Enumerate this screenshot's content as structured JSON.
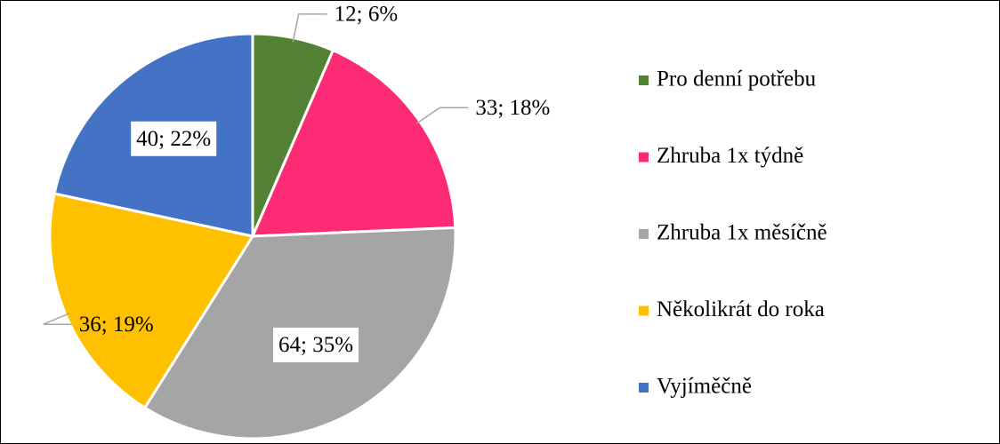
{
  "chart_data": {
    "type": "pie",
    "categories": [
      "Pro denní potřebu",
      "Zhruba 1x týdně",
      "Zhruba 1x měsíčně",
      "Několikrát do roka",
      "Vyjíměčně"
    ],
    "values": [
      12,
      33,
      64,
      36,
      40
    ],
    "value_labels": [
      "12; 6%",
      "33; 18%",
      "64; 35%",
      "36; 19%",
      "40; 22%"
    ],
    "colors": [
      "#548235",
      "#fd2a76",
      "#a5a5a5",
      "#ffc000",
      "#4472c4"
    ],
    "legend": "right"
  }
}
